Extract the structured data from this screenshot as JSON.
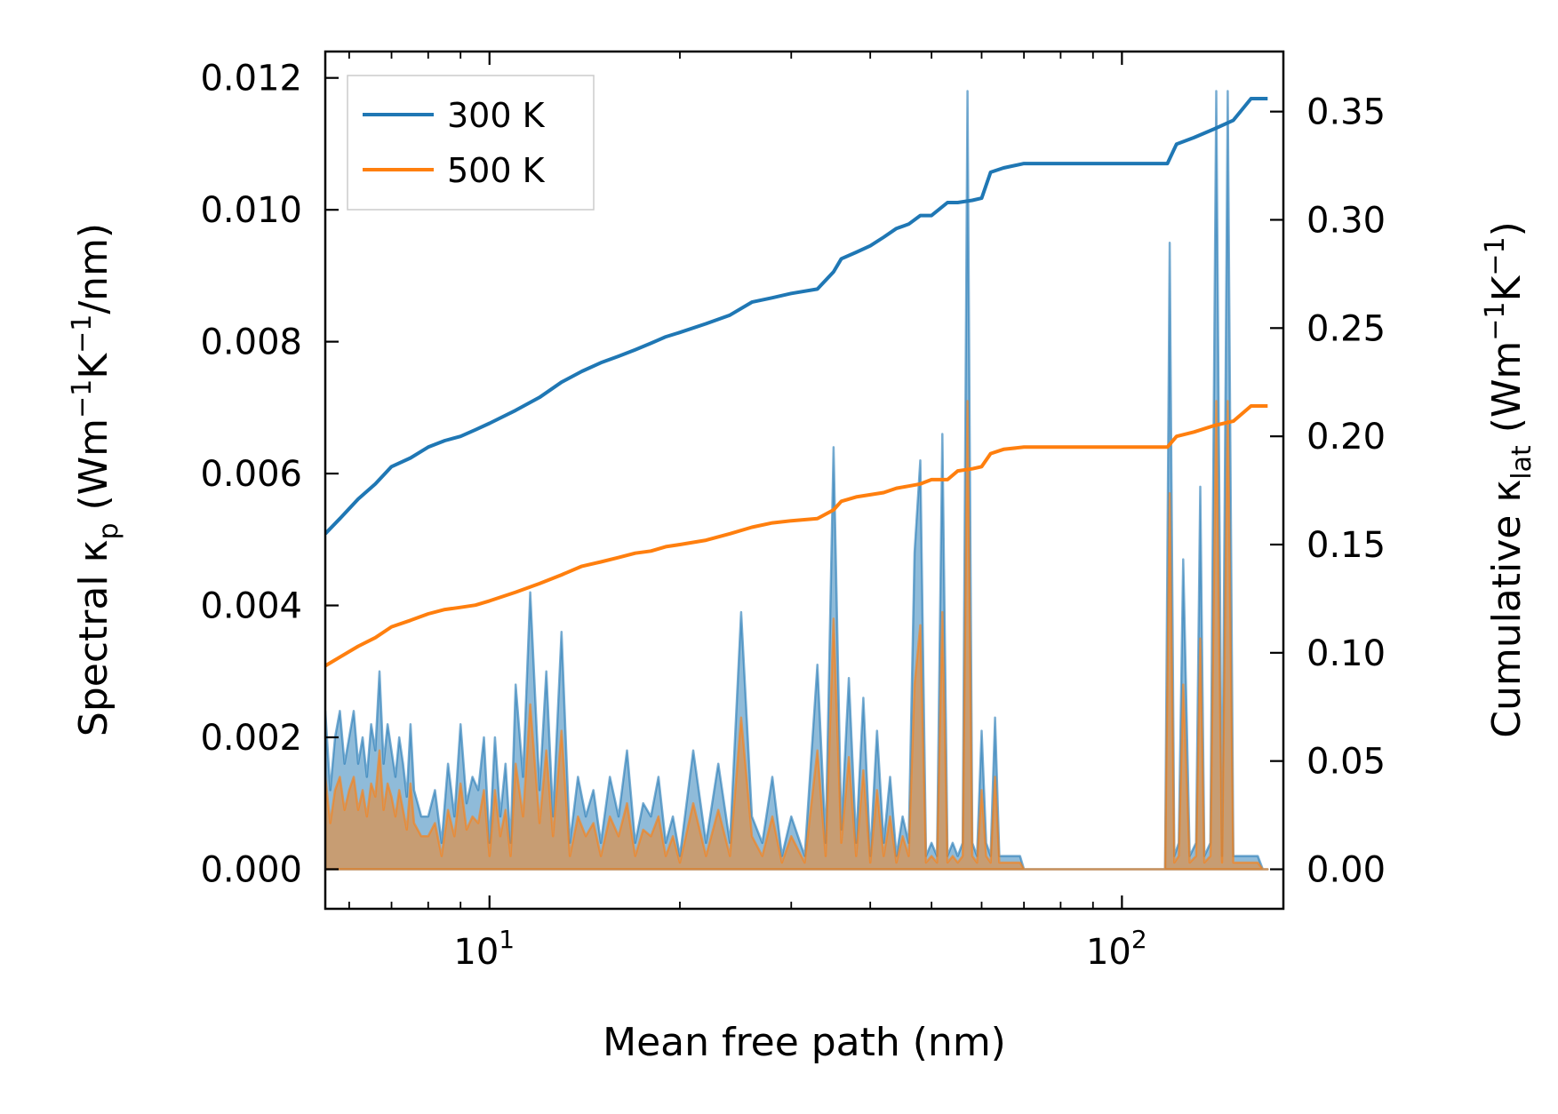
{
  "chart_data": {
    "type": "line",
    "xscale": "log",
    "xlim": [
      5.5,
      180
    ],
    "xlabel": "Mean free path (nm)",
    "x_ticks": [
      {
        "value": 10,
        "base": "10",
        "exp": "1"
      },
      {
        "value": 100,
        "base": "10",
        "exp": "2"
      }
    ],
    "left_axis": {
      "label_main": "Spectral κ",
      "label_sub": "p",
      "label_unit_open": " (Wm",
      "label_unit_sup1": "−1",
      "label_unit_mid": "K",
      "label_unit_sup2": "−1",
      "label_unit_close": "/nm)",
      "ylim": [
        -0.0006,
        0.0124
      ],
      "ticks": [
        0.0,
        0.002,
        0.004,
        0.006,
        0.008,
        0.01,
        0.012
      ],
      "tick_labels": [
        "0.000",
        "0.002",
        "0.004",
        "0.006",
        "0.008",
        "0.010",
        "0.012"
      ]
    },
    "right_axis": {
      "label_main": "Cumulative κ",
      "label_sub": "lat",
      "label_unit_open": " (Wm",
      "label_unit_sup1": "−1",
      "label_unit_mid": "K",
      "label_unit_sup2": "−1",
      "label_unit_close": ")",
      "ylim": [
        -0.01825,
        0.37775
      ],
      "ticks": [
        0.0,
        0.05,
        0.1,
        0.15,
        0.2,
        0.25,
        0.3,
        0.35
      ],
      "tick_labels": [
        "0.00",
        "0.05",
        "0.10",
        "0.15",
        "0.20",
        "0.25",
        "0.30",
        "0.35"
      ]
    },
    "legend": {
      "position": "top-left",
      "entries": [
        {
          "label": "300 K",
          "color": "#1f77b4"
        },
        {
          "label": "500 K",
          "color": "#ff7f0e"
        }
      ]
    },
    "series": [
      {
        "name": "300 K",
        "color": "#1f77b4",
        "cumulative": {
          "x": [
            5.5,
            5.8,
            6.2,
            6.6,
            7.0,
            7.5,
            8.0,
            8.5,
            9.0,
            9.5,
            10.0,
            11.0,
            12.0,
            13.0,
            14.0,
            15.0,
            16.0,
            17.0,
            18.0,
            19.0,
            20.0,
            22.0,
            24.0,
            26.0,
            28.0,
            30.0,
            33.0,
            35.0,
            36.0,
            38.0,
            40.0,
            42.0,
            44.0,
            46.0,
            48.0,
            50.0,
            53.0,
            55.0,
            58.0,
            60.0,
            62.0,
            65.0,
            70.0,
            80.0,
            100.0,
            118.0,
            122.0,
            130.0,
            140.0,
            150.0,
            160.0,
            170.0
          ],
          "y": [
            0.155,
            0.162,
            0.171,
            0.178,
            0.186,
            0.19,
            0.195,
            0.198,
            0.2,
            0.203,
            0.206,
            0.212,
            0.218,
            0.225,
            0.23,
            0.234,
            0.237,
            0.24,
            0.243,
            0.246,
            0.248,
            0.252,
            0.256,
            0.262,
            0.264,
            0.266,
            0.268,
            0.276,
            0.282,
            0.285,
            0.288,
            0.292,
            0.296,
            0.298,
            0.302,
            0.302,
            0.308,
            0.308,
            0.309,
            0.31,
            0.322,
            0.324,
            0.326,
            0.326,
            0.326,
            0.326,
            0.335,
            0.338,
            0.342,
            0.346,
            0.356,
            0.356
          ]
        },
        "spectral": {
          "x": [
            5.5,
            5.6,
            5.7,
            5.8,
            5.9,
            6.0,
            6.1,
            6.2,
            6.3,
            6.4,
            6.5,
            6.6,
            6.7,
            6.8,
            6.9,
            7.0,
            7.1,
            7.2,
            7.3,
            7.4,
            7.5,
            7.6,
            7.8,
            8.0,
            8.2,
            8.4,
            8.6,
            8.8,
            9.0,
            9.2,
            9.4,
            9.6,
            9.8,
            10.0,
            10.2,
            10.4,
            10.6,
            10.8,
            11.0,
            11.3,
            11.6,
            12.0,
            12.3,
            12.6,
            13.0,
            13.4,
            13.8,
            14.2,
            14.6,
            15.0,
            15.5,
            16.0,
            16.5,
            17.0,
            17.5,
            18.0,
            18.5,
            19.0,
            19.5,
            20.0,
            21.0,
            22.0,
            23.0,
            24.0,
            25.0,
            26.0,
            27.0,
            28.0,
            29.0,
            30.0,
            31.5,
            33.0,
            34.0,
            35.0,
            36.0,
            37.0,
            38.0,
            39.0,
            40.0,
            41.0,
            42.0,
            43.0,
            44.0,
            45.0,
            46.0,
            47.0,
            48.0,
            49.0,
            50.0,
            51.0,
            52.0,
            53.0,
            54.0,
            55.0,
            56.0,
            57.0,
            58.0,
            59.0,
            60.0,
            61.0,
            62.0,
            63.0,
            64.0,
            65.0,
            66.0,
            67.0,
            68.0,
            69.0,
            70.0,
            72.0,
            75.0,
            80.0,
            90.0,
            100.0,
            110.0,
            117.0,
            119.0,
            121.0,
            123.0,
            125.0,
            128.0,
            131.0,
            133.0,
            135.0,
            138.0,
            141.0,
            144.0,
            147.0,
            150.0,
            153.0,
            156.0,
            159.0,
            161.0,
            164.0,
            167.0,
            170.0
          ],
          "y": [
            0.0024,
            0.0012,
            0.002,
            0.0024,
            0.0016,
            0.002,
            0.0024,
            0.0016,
            0.002,
            0.0014,
            0.0022,
            0.0018,
            0.003,
            0.0016,
            0.0022,
            0.0018,
            0.0014,
            0.002,
            0.0016,
            0.0011,
            0.0022,
            0.0012,
            0.0008,
            0.0008,
            0.0012,
            0.0004,
            0.0016,
            0.0008,
            0.0022,
            0.001,
            0.0014,
            0.0012,
            0.002,
            0.0004,
            0.002,
            0.0008,
            0.0016,
            0.0004,
            0.0028,
            0.0014,
            0.0042,
            0.0012,
            0.003,
            0.0008,
            0.0036,
            0.0004,
            0.0014,
            0.0008,
            0.0012,
            0.0004,
            0.0014,
            0.0008,
            0.0018,
            0.0004,
            0.001,
            0.0008,
            0.0014,
            0.0004,
            0.0008,
            0.0002,
            0.0018,
            0.0004,
            0.0016,
            0.0004,
            0.0039,
            0.0008,
            0.0004,
            0.0014,
            0.0002,
            0.0008,
            0.0002,
            0.0031,
            0.0004,
            0.0064,
            0.0006,
            0.0029,
            0.0004,
            0.0026,
            0.0002,
            0.0021,
            0.0004,
            0.0014,
            0.0002,
            0.0008,
            0.0004,
            0.0048,
            0.0062,
            0.0002,
            0.0004,
            0.0002,
            0.0066,
            0.0002,
            0.0004,
            0.0002,
            0.0004,
            0.0118,
            0.0004,
            0.0002,
            0.0021,
            0.0004,
            0.0002,
            0.0023,
            0.0002,
            0.0002,
            0.0002,
            0.0002,
            0.0002,
            0.0002,
            0.0,
            0.0,
            0.0,
            0.0,
            0.0,
            0.0,
            0.0,
            0.0,
            0.0095,
            0.0002,
            0.0004,
            0.0047,
            0.0002,
            0.0004,
            0.0058,
            0.0002,
            0.0004,
            0.0118,
            0.0002,
            0.0118,
            0.0002,
            0.0002,
            0.0002,
            0.0002,
            0.0002,
            0.0002,
            0.0,
            0.0
          ]
        }
      },
      {
        "name": "500 K",
        "color": "#ff7f0e",
        "cumulative": {
          "x": [
            5.5,
            5.8,
            6.2,
            6.6,
            7.0,
            7.5,
            8.0,
            8.5,
            9.0,
            9.5,
            10.0,
            11.0,
            12.0,
            13.0,
            14.0,
            15.0,
            16.0,
            17.0,
            18.0,
            19.0,
            20.0,
            22.0,
            24.0,
            26.0,
            28.0,
            30.0,
            33.0,
            35.0,
            36.0,
            38.0,
            40.0,
            42.0,
            44.0,
            46.0,
            48.0,
            50.0,
            53.0,
            55.0,
            58.0,
            60.0,
            62.0,
            65.0,
            70.0,
            80.0,
            100.0,
            118.0,
            122.0,
            130.0,
            140.0,
            150.0,
            160.0,
            170.0
          ],
          "y": [
            0.094,
            0.098,
            0.103,
            0.107,
            0.112,
            0.115,
            0.118,
            0.12,
            0.121,
            0.122,
            0.124,
            0.128,
            0.132,
            0.136,
            0.14,
            0.142,
            0.144,
            0.146,
            0.147,
            0.149,
            0.15,
            0.152,
            0.155,
            0.158,
            0.16,
            0.161,
            0.162,
            0.166,
            0.17,
            0.172,
            0.173,
            0.174,
            0.176,
            0.177,
            0.178,
            0.18,
            0.18,
            0.184,
            0.185,
            0.186,
            0.192,
            0.194,
            0.195,
            0.195,
            0.195,
            0.195,
            0.2,
            0.202,
            0.205,
            0.207,
            0.214,
            0.214
          ]
        },
        "spectral": {
          "x": [
            5.5,
            5.6,
            5.7,
            5.8,
            5.9,
            6.0,
            6.1,
            6.2,
            6.3,
            6.4,
            6.5,
            6.6,
            6.7,
            6.8,
            6.9,
            7.0,
            7.1,
            7.2,
            7.3,
            7.4,
            7.5,
            7.6,
            7.8,
            8.0,
            8.2,
            8.4,
            8.6,
            8.8,
            9.0,
            9.2,
            9.4,
            9.6,
            9.8,
            10.0,
            10.2,
            10.4,
            10.6,
            10.8,
            11.0,
            11.3,
            11.6,
            12.0,
            12.3,
            12.6,
            13.0,
            13.4,
            13.8,
            14.2,
            14.6,
            15.0,
            15.5,
            16.0,
            16.5,
            17.0,
            17.5,
            18.0,
            18.5,
            19.0,
            19.5,
            20.0,
            21.0,
            22.0,
            23.0,
            24.0,
            25.0,
            26.0,
            27.0,
            28.0,
            29.0,
            30.0,
            31.5,
            33.0,
            34.0,
            35.0,
            36.0,
            37.0,
            38.0,
            39.0,
            40.0,
            41.0,
            42.0,
            43.0,
            44.0,
            45.0,
            46.0,
            47.0,
            48.0,
            49.0,
            50.0,
            51.0,
            52.0,
            53.0,
            54.0,
            55.0,
            56.0,
            57.0,
            58.0,
            59.0,
            60.0,
            61.0,
            62.0,
            63.0,
            64.0,
            65.0,
            66.0,
            67.0,
            68.0,
            69.0,
            70.0,
            72.0,
            75.0,
            80.0,
            90.0,
            100.0,
            110.0,
            117.0,
            119.0,
            121.0,
            123.0,
            125.0,
            128.0,
            131.0,
            133.0,
            135.0,
            138.0,
            141.0,
            144.0,
            147.0,
            150.0,
            153.0,
            156.0,
            159.0,
            161.0,
            164.0,
            167.0,
            170.0
          ],
          "y": [
            0.0014,
            0.0007,
            0.0012,
            0.0014,
            0.0009,
            0.0012,
            0.0014,
            0.0009,
            0.0012,
            0.0008,
            0.0013,
            0.0011,
            0.0018,
            0.0009,
            0.0013,
            0.0011,
            0.0008,
            0.0012,
            0.0009,
            0.0006,
            0.0013,
            0.0007,
            0.0005,
            0.0005,
            0.0007,
            0.0002,
            0.0009,
            0.0005,
            0.0013,
            0.0006,
            0.0008,
            0.0007,
            0.0012,
            0.0002,
            0.0012,
            0.0005,
            0.0009,
            0.0002,
            0.0016,
            0.0008,
            0.0025,
            0.0007,
            0.0018,
            0.0005,
            0.0021,
            0.0002,
            0.0008,
            0.0005,
            0.0007,
            0.0002,
            0.0008,
            0.0005,
            0.001,
            0.0002,
            0.0006,
            0.0005,
            0.0008,
            0.0002,
            0.0005,
            0.0001,
            0.001,
            0.0002,
            0.0009,
            0.0002,
            0.0023,
            0.0005,
            0.0002,
            0.0008,
            0.0001,
            0.0005,
            0.0001,
            0.0018,
            0.0002,
            0.0038,
            0.0004,
            0.0017,
            0.0002,
            0.0015,
            0.0001,
            0.0012,
            0.0002,
            0.0008,
            0.0001,
            0.0005,
            0.0002,
            0.0028,
            0.0037,
            0.0001,
            0.0002,
            0.0001,
            0.0039,
            0.0001,
            0.0002,
            0.0001,
            0.0002,
            0.0071,
            0.0002,
            0.0001,
            0.0012,
            0.0002,
            0.0001,
            0.0014,
            0.0001,
            0.0001,
            0.0001,
            0.0001,
            0.0001,
            0.0001,
            0.0,
            0.0,
            0.0,
            0.0,
            0.0,
            0.0,
            0.0,
            0.0,
            0.0057,
            0.0001,
            0.0002,
            0.0028,
            0.0001,
            0.0002,
            0.0035,
            0.0001,
            0.0002,
            0.0071,
            0.0001,
            0.0071,
            0.0001,
            0.0001,
            0.0001,
            0.0001,
            0.0001,
            0.0001,
            0.0,
            0.0
          ]
        }
      }
    ]
  }
}
